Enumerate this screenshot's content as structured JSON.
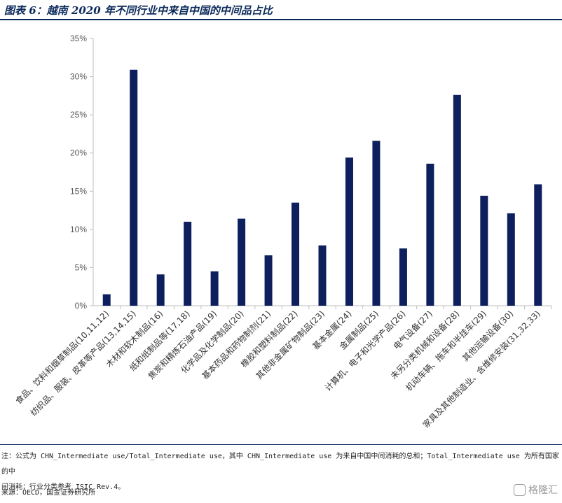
{
  "title": "图表 6：越南 2020 年不同行业中来自中国的中间品占比",
  "chart_data": {
    "type": "bar",
    "categories": [
      "食品、饮料和烟草制品(10,11,12)",
      "纺织品、服装、皮革等产品(13,14,15)",
      "木材和软木制品(16)",
      "纸和纸制品等(17,18)",
      "焦炭和精炼石油产品(19)",
      "化学品及化学制品(20)",
      "基本药品和药物制剂(21)",
      "橡胶和塑料制品(22)",
      "其他非金属矿物制品(23)",
      "基本金属(24)",
      "金属制品(25)",
      "计算机、电子和光学产品(26)",
      "电气设备(27)",
      "未另分类机械和设备(28)",
      "机动车辆、拖车和半挂车(29)",
      "其他运输设备(30)",
      "家具及其他制造业、含维修安装(31,32,33)"
    ],
    "values": [
      1.5,
      30.9,
      4.1,
      11.0,
      4.5,
      11.4,
      6.6,
      13.5,
      7.9,
      19.4,
      21.6,
      7.5,
      18.6,
      27.6,
      14.4,
      12.1,
      15.9
    ],
    "ylim": [
      0,
      35
    ],
    "yticks": [
      "0%",
      "5%",
      "10%",
      "15%",
      "20%",
      "25%",
      "30%",
      "35%"
    ],
    "bar_color": "#0d1f5c",
    "grid": false,
    "legend": "none"
  },
  "footer": {
    "note_line1": "注：公式为 CHN_Intermediate use/Total_Intermediate use，其中 CHN_Intermediate use 为来自中国中间消耗的总和；Total_Intermediate use 为所有国家的中",
    "note_line2": "间消耗；行业分类参考 ISIC Rev.4。",
    "source": "来源：OECD，国金证券研究所",
    "watermark": "格隆汇"
  }
}
